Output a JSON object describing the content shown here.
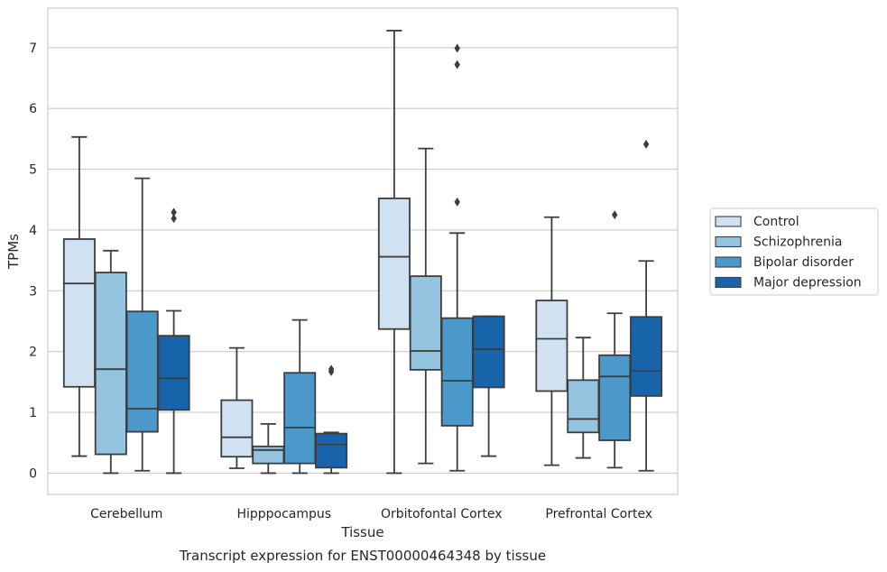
{
  "chart_data": {
    "type": "box",
    "caption": "Transcript expression for ENST00000464348 by tissue",
    "xlabel": "Tissue",
    "ylabel": "TPMs",
    "ylim": [
      -0.35,
      7.65
    ],
    "yticks": [
      0,
      1,
      2,
      3,
      4,
      5,
      6,
      7
    ],
    "grid": true,
    "legend_position": "right",
    "categories": [
      "Cerebellum",
      "Hipppocampus",
      "Orbitofontal Cortex",
      "Prefrontal Cortex"
    ],
    "series": [
      {
        "name": "Control",
        "color": "#d0e1f2",
        "boxes": [
          {
            "min": 0.28,
            "q1": 1.42,
            "median": 3.12,
            "q3": 3.85,
            "max": 5.53,
            "outliers": []
          },
          {
            "min": 0.08,
            "q1": 0.27,
            "median": 0.59,
            "q3": 1.2,
            "max": 2.06,
            "outliers": []
          },
          {
            "min": 0.0,
            "q1": 2.37,
            "median": 3.56,
            "q3": 4.52,
            "max": 7.28,
            "outliers": []
          },
          {
            "min": 0.13,
            "q1": 1.35,
            "median": 2.21,
            "q3": 2.84,
            "max": 4.21,
            "outliers": []
          }
        ]
      },
      {
        "name": "Schizophrenia",
        "color": "#94c4df",
        "boxes": [
          {
            "min": 0.0,
            "q1": 0.31,
            "median": 1.71,
            "q3": 3.3,
            "max": 3.66,
            "outliers": []
          },
          {
            "min": 0.0,
            "q1": 0.16,
            "median": 0.38,
            "q3": 0.44,
            "max": 0.81,
            "outliers": []
          },
          {
            "min": 0.16,
            "q1": 1.7,
            "median": 2.01,
            "q3": 3.24,
            "max": 5.34,
            "outliers": []
          },
          {
            "min": 0.25,
            "q1": 0.67,
            "median": 0.89,
            "q3": 1.53,
            "max": 2.23,
            "outliers": []
          }
        ]
      },
      {
        "name": "Bipolar disorder",
        "color": "#4b98ca",
        "boxes": [
          {
            "min": 0.04,
            "q1": 0.68,
            "median": 1.06,
            "q3": 2.66,
            "max": 4.85,
            "outliers": []
          },
          {
            "min": 0.0,
            "q1": 0.16,
            "median": 0.75,
            "q3": 1.65,
            "max": 2.52,
            "outliers": []
          },
          {
            "min": 0.04,
            "q1": 0.78,
            "median": 1.52,
            "q3": 2.55,
            "max": 3.95,
            "outliers": [
              4.46,
              6.72,
              6.99
            ]
          },
          {
            "min": 0.09,
            "q1": 0.54,
            "median": 1.59,
            "q3": 1.94,
            "max": 2.63,
            "outliers": [
              4.25
            ]
          }
        ]
      },
      {
        "name": "Major depression",
        "color": "#1764ab",
        "boxes": [
          {
            "min": 0.0,
            "q1": 1.04,
            "median": 1.56,
            "q3": 2.26,
            "max": 2.67,
            "outliers": [
              4.19,
              4.29
            ]
          },
          {
            "min": 0.0,
            "q1": 0.09,
            "median": 0.47,
            "q3": 0.65,
            "max": 0.67,
            "outliers": [
              1.67,
              1.71
            ]
          },
          {
            "min": 0.28,
            "q1": 1.41,
            "median": 2.04,
            "q3": 2.58,
            "max": 2.58,
            "outliers": []
          },
          {
            "min": 0.04,
            "q1": 1.27,
            "median": 1.68,
            "q3": 2.57,
            "max": 3.49,
            "outliers": [
              5.41
            ]
          }
        ]
      }
    ]
  }
}
